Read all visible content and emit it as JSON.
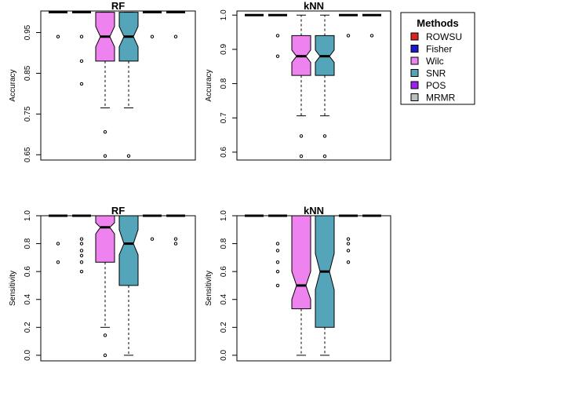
{
  "legend": {
    "title": "Methods",
    "items": [
      {
        "label": "ROWSU",
        "color": "#dd2222"
      },
      {
        "label": "Fisher",
        "color": "#1a1acc"
      },
      {
        "label": "Wilc",
        "color": "#ee82ee"
      },
      {
        "label": "SNR",
        "color": "#54a4ba"
      },
      {
        "label": "POS",
        "color": "#a020f0"
      },
      {
        "label": "MRMR",
        "color": "#bebebe"
      }
    ]
  },
  "chart_data": [
    {
      "type": "boxplot",
      "title": "RF",
      "ylabel": "Accuracy",
      "ylim": [
        0.637,
        1.003
      ],
      "yticks": [
        0.65,
        0.75,
        0.85,
        0.95
      ],
      "boxes": [
        {
          "method": "ROWSU",
          "q1": 1.0,
          "med": 1.0,
          "q3": 1.0,
          "lo": 1.0,
          "hi": 1.0,
          "notch": [
            1.0,
            1.0
          ],
          "outliers": [
            0.94
          ]
        },
        {
          "method": "Fisher",
          "q1": 1.0,
          "med": 1.0,
          "q3": 1.0,
          "lo": 1.0,
          "hi": 1.0,
          "notch": [
            1.0,
            1.0
          ],
          "outliers": [
            0.94,
            0.88,
            0.824
          ]
        },
        {
          "method": "Wilc",
          "q1": 0.88,
          "med": 0.94,
          "q3": 1.0,
          "lo": 0.765,
          "hi": 1.0,
          "notch": [
            0.915,
            0.965
          ],
          "outliers": [
            0.706,
            0.647
          ]
        },
        {
          "method": "SNR",
          "q1": 0.88,
          "med": 0.94,
          "q3": 1.0,
          "lo": 0.765,
          "hi": 1.0,
          "notch": [
            0.915,
            0.965
          ],
          "outliers": [
            0.647
          ]
        },
        {
          "method": "POS",
          "q1": 1.0,
          "med": 1.0,
          "q3": 1.0,
          "lo": 1.0,
          "hi": 1.0,
          "notch": [
            1.0,
            1.0
          ],
          "outliers": [
            0.94
          ]
        },
        {
          "method": "MRMR",
          "q1": 1.0,
          "med": 1.0,
          "q3": 1.0,
          "lo": 1.0,
          "hi": 1.0,
          "notch": [
            1.0,
            1.0
          ],
          "outliers": [
            0.94
          ]
        }
      ]
    },
    {
      "type": "boxplot",
      "title": "kNN",
      "ylabel": "Accuracy",
      "ylim": [
        0.577,
        1.012
      ],
      "yticks": [
        0.6,
        0.7,
        0.8,
        0.9,
        1.0
      ],
      "boxes": [
        {
          "method": "ROWSU",
          "q1": 1.0,
          "med": 1.0,
          "q3": 1.0,
          "lo": 1.0,
          "hi": 1.0,
          "notch": [
            1.0,
            1.0
          ],
          "outliers": []
        },
        {
          "method": "Fisher",
          "q1": 1.0,
          "med": 1.0,
          "q3": 1.0,
          "lo": 1.0,
          "hi": 1.0,
          "notch": [
            1.0,
            1.0
          ],
          "outliers": [
            0.94,
            0.88
          ]
        },
        {
          "method": "Wilc",
          "q1": 0.824,
          "med": 0.88,
          "q3": 0.94,
          "lo": 0.706,
          "hi": 1.0,
          "notch": [
            0.862,
            0.898
          ],
          "outliers": [
            0.647,
            0.588
          ]
        },
        {
          "method": "SNR",
          "q1": 0.824,
          "med": 0.88,
          "q3": 0.94,
          "lo": 0.706,
          "hi": 1.0,
          "notch": [
            0.862,
            0.898
          ],
          "outliers": [
            0.647,
            0.588
          ]
        },
        {
          "method": "POS",
          "q1": 1.0,
          "med": 1.0,
          "q3": 1.0,
          "lo": 1.0,
          "hi": 1.0,
          "notch": [
            1.0,
            1.0
          ],
          "outliers": [
            0.94
          ]
        },
        {
          "method": "MRMR",
          "q1": 1.0,
          "med": 1.0,
          "q3": 1.0,
          "lo": 1.0,
          "hi": 1.0,
          "notch": [
            1.0,
            1.0
          ],
          "outliers": [
            0.94
          ]
        }
      ]
    },
    {
      "type": "boxplot",
      "title": "RF",
      "ylabel": "Sensitivity",
      "ylim": [
        -0.04,
        1.0
      ],
      "yticks": [
        0.0,
        0.2,
        0.4,
        0.6,
        0.8,
        1.0
      ],
      "boxes": [
        {
          "method": "ROWSU",
          "q1": 1.0,
          "med": 1.0,
          "q3": 1.0,
          "lo": 1.0,
          "hi": 1.0,
          "notch": [
            1.0,
            1.0
          ],
          "outliers": [
            0.8,
            0.667
          ]
        },
        {
          "method": "Fisher",
          "q1": 1.0,
          "med": 1.0,
          "q3": 1.0,
          "lo": 1.0,
          "hi": 1.0,
          "notch": [
            1.0,
            1.0
          ],
          "outliers": [
            0.833,
            0.8,
            0.75,
            0.714,
            0.667,
            0.6
          ]
        },
        {
          "method": "Wilc",
          "q1": 0.667,
          "med": 0.917,
          "q3": 1.0,
          "lo": 0.2,
          "hi": 1.0,
          "notch": [
            0.87,
            0.95
          ],
          "outliers": [
            0.143,
            0.0
          ]
        },
        {
          "method": "SNR",
          "q1": 0.5,
          "med": 0.8,
          "q3": 1.0,
          "lo": 0.0,
          "hi": 1.0,
          "notch": [
            0.72,
            0.9
          ],
          "outliers": []
        },
        {
          "method": "POS",
          "q1": 1.0,
          "med": 1.0,
          "q3": 1.0,
          "lo": 1.0,
          "hi": 1.0,
          "notch": [
            1.0,
            1.0
          ],
          "outliers": [
            0.833
          ]
        },
        {
          "method": "MRMR",
          "q1": 1.0,
          "med": 1.0,
          "q3": 1.0,
          "lo": 1.0,
          "hi": 1.0,
          "notch": [
            1.0,
            1.0
          ],
          "outliers": [
            0.833,
            0.8
          ]
        }
      ]
    },
    {
      "type": "boxplot",
      "title": "kNN",
      "ylabel": "Sensitivity",
      "ylim": [
        -0.04,
        1.0
      ],
      "yticks": [
        0.0,
        0.2,
        0.4,
        0.6,
        0.8,
        1.0
      ],
      "boxes": [
        {
          "method": "ROWSU",
          "q1": 1.0,
          "med": 1.0,
          "q3": 1.0,
          "lo": 1.0,
          "hi": 1.0,
          "notch": [
            1.0,
            1.0
          ],
          "outliers": []
        },
        {
          "method": "Fisher",
          "q1": 1.0,
          "med": 1.0,
          "q3": 1.0,
          "lo": 1.0,
          "hi": 1.0,
          "notch": [
            1.0,
            1.0
          ],
          "outliers": [
            0.8,
            0.75,
            0.667,
            0.6,
            0.5
          ]
        },
        {
          "method": "Wilc",
          "q1": 0.333,
          "med": 0.5,
          "q3": 1.0,
          "lo": 0.0,
          "hi": 1.0,
          "notch": [
            0.4,
            0.6
          ],
          "outliers": []
        },
        {
          "method": "SNR",
          "q1": 0.2,
          "med": 0.6,
          "q3": 1.0,
          "lo": 0.0,
          "hi": 1.0,
          "notch": [
            0.47,
            0.73
          ],
          "outliers": []
        },
        {
          "method": "POS",
          "q1": 1.0,
          "med": 1.0,
          "q3": 1.0,
          "lo": 1.0,
          "hi": 1.0,
          "notch": [
            1.0,
            1.0
          ],
          "outliers": [
            0.833,
            0.8,
            0.75,
            0.667
          ]
        },
        {
          "method": "MRMR",
          "q1": 1.0,
          "med": 1.0,
          "q3": 1.0,
          "lo": 1.0,
          "hi": 1.0,
          "notch": [
            1.0,
            1.0
          ],
          "outliers": []
        }
      ]
    }
  ]
}
